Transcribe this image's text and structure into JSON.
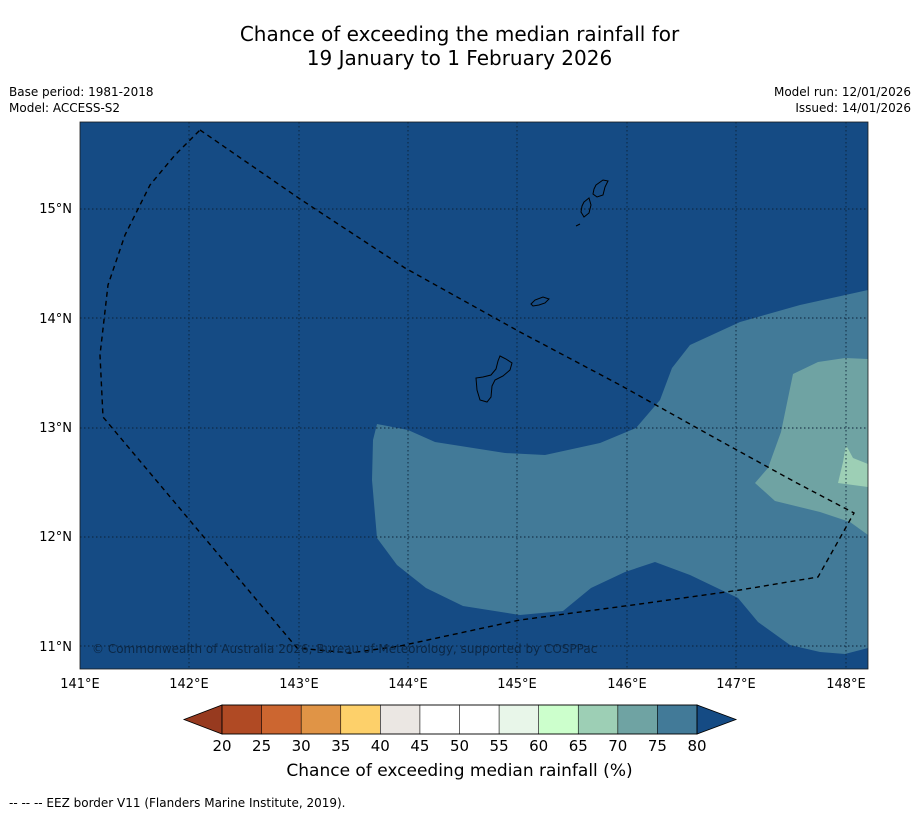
{
  "title": {
    "line1": "Chance of exceeding the median rainfall for",
    "line2": "19 January to 1 February 2026"
  },
  "meta": {
    "base_period": "Base period: 1981-2018",
    "model": "Model: ACCESS-S2",
    "model_run": "Model run: 12/01/2026",
    "issued": "Issued: 14/01/2026"
  },
  "map": {
    "lon_labels": [
      "141°E",
      "142°E",
      "143°E",
      "144°E",
      "145°E",
      "146°E",
      "147°E",
      "148°E"
    ],
    "lat_labels": [
      "15°N",
      "14°N",
      "13°N",
      "12°N",
      "11°N"
    ],
    "copyright": "© Commonwealth of Australia 2026, Bureau of Meteorology, supported by COSPPac",
    "regions": [
      {
        "name": "background",
        "category": "> 80%",
        "color": "#154b84"
      },
      {
        "name": "band",
        "category": "75–80%",
        "color": "#427a98"
      },
      {
        "name": "core",
        "category": "70–75%",
        "color": "#6fa3a3"
      },
      {
        "name": "peak",
        "category": "65–70%",
        "color": "#9dcfb5"
      }
    ]
  },
  "colorbar": {
    "ticks": [
      "20",
      "25",
      "30",
      "35",
      "40",
      "45",
      "50",
      "55",
      "60",
      "65",
      "70",
      "75",
      "80"
    ],
    "colors": [
      "#b04a24",
      "#cc6630",
      "#e09446",
      "#fdd06a",
      "#ebe7e3",
      "#ffffff",
      "#ffffff",
      "#e8f6e9",
      "#ccffcc",
      "#9dcfb5",
      "#6fa3a3",
      "#427a98"
    ],
    "under_color": "#973a1f",
    "over_color": "#154b84",
    "label": "Chance of exceeding median rainfall (%)"
  },
  "footnote": "--  --  -- EEZ border V11 (Flanders Marine Institute, 2019)."
}
